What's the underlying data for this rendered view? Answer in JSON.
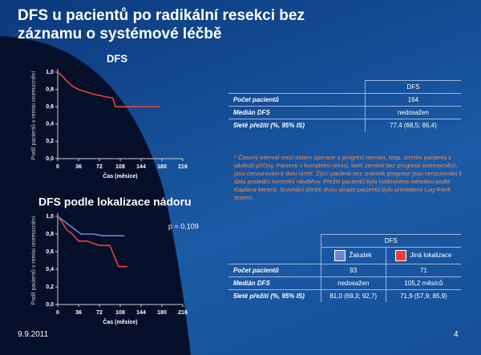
{
  "title": "DFS u pacientů po radikální resekci bez záznamu o systémové léčbě",
  "chart_data": [
    {
      "type": "line",
      "title": "DFS",
      "xlabel": "Čas (měsíce)",
      "ylabel": "Podíl pacientů v remisi onemocnění",
      "xlim": [
        0,
        216
      ],
      "xticks": [
        0,
        36,
        72,
        108,
        144,
        180,
        216
      ],
      "ylim": [
        0,
        1
      ],
      "yticks": [
        {
          "value": 0,
          "label": "0,0"
        },
        {
          "value": 0.2,
          "label": "0,2"
        },
        {
          "value": 0.4,
          "label": "0,4"
        },
        {
          "value": 0.6,
          "label": "0,6"
        },
        {
          "value": 0.8,
          "label": "0,8"
        },
        {
          "value": 1,
          "label": "1,0"
        }
      ],
      "series": [
        {
          "color": "#e8403a",
          "x": [
            0,
            5,
            10,
            15,
            20,
            25,
            30,
            36,
            45,
            55,
            65,
            80,
            95,
            100,
            176
          ],
          "values": [
            1,
            0.97,
            0.94,
            0.9,
            0.87,
            0.84,
            0.82,
            0.8,
            0.78,
            0.76,
            0.74,
            0.72,
            0.7,
            0.6,
            0.6
          ]
        }
      ]
    },
    {
      "type": "line",
      "title": "DFS podle lokalizace nádoru",
      "annotation": "p = 0,109",
      "xlabel": "Čas (měsíce)",
      "ylabel": "Podíl pacientů v remisi onemocnění",
      "xlim": [
        0,
        216
      ],
      "xticks": [
        0,
        36,
        72,
        108,
        144,
        180,
        216
      ],
      "ylim": [
        0,
        1
      ],
      "yticks": [
        {
          "value": 0,
          "label": "0,0"
        },
        {
          "value": 0.2,
          "label": "0,2"
        },
        {
          "value": 0.4,
          "label": "0,4"
        },
        {
          "value": 0.6,
          "label": "0,6"
        },
        {
          "value": 0.8,
          "label": "0,8"
        },
        {
          "value": 1,
          "label": "1,0"
        }
      ],
      "series": [
        {
          "name": "Žaludek",
          "color": "#6f86d8",
          "x": [
            0,
            10,
            20,
            30,
            40,
            60,
            80,
            115
          ],
          "values": [
            1,
            0.95,
            0.9,
            0.85,
            0.8,
            0.8,
            0.78,
            0.78
          ]
        },
        {
          "name": "Jiná lokalizace",
          "color": "#e8403a",
          "x": [
            0,
            8,
            15,
            25,
            36,
            50,
            72,
            90,
            105,
            120
          ],
          "values": [
            1,
            0.93,
            0.85,
            0.8,
            0.72,
            0.72,
            0.67,
            0.67,
            0.43,
            0.43
          ]
        }
      ]
    }
  ],
  "table1": {
    "header": "DFS",
    "rows": [
      [
        "Počet pacientů",
        "164"
      ],
      [
        "Medián DFS",
        "nedosažen"
      ],
      [
        "5leté přežití (%, 95% IS)",
        "77,4 (68,5; 86,4)"
      ]
    ]
  },
  "note": "* Časový interval mezi datem operace a progresí nemoci, resp. úmrtím pacienta z jakékoli příčiny. Pacienti v kompletní remisi, kteří zemřeli bez progrese onemocnění, jsou cenzurováni k datu úmrtí. Žijící pacienti bez známek progrese jsou cenzurováni k datu poslední kontrolní návštěvy. Přežití pacientů bylo hodnoceno metodou podle Kaplana-Meiera. Srovnání přežití dvou skupin pacientů bylo provedeno Log-Rank testem.",
  "table2": {
    "header": "DFS",
    "rows": [
      [
        "Počet pacientů",
        "93",
        "71"
      ],
      [
        "Medián DFS",
        "nedosažen",
        "105,2 měsíců"
      ],
      [
        "5leté přežití (%, 95% IS)",
        "81,0 (69,3; 92,7)",
        "71,9 (57,9; 85,9)"
      ]
    ]
  },
  "footer": {
    "date": "9.9.2011",
    "page": "4"
  }
}
